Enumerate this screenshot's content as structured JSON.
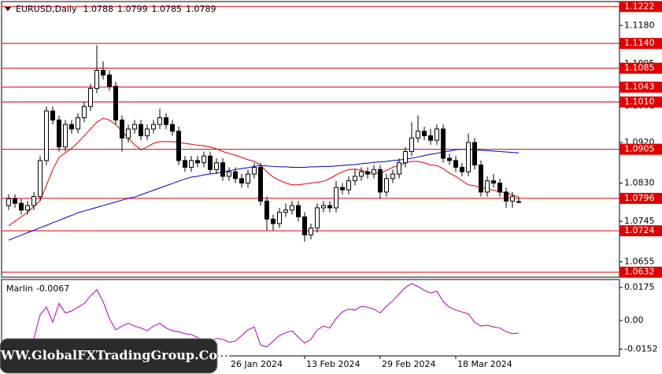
{
  "chart_data": {
    "type": "candlestick",
    "symbol": "EURUSD,Daily",
    "categories": [
      null,
      null,
      null,
      null,
      null,
      null,
      null,
      null,
      null,
      null,
      null,
      null,
      null,
      null,
      null,
      null,
      null,
      null,
      null,
      null,
      null,
      null,
      null,
      null,
      null,
      null,
      null,
      null,
      null,
      null,
      null,
      null,
      null,
      null,
      null,
      "26 Jan 2024",
      null,
      null,
      null,
      null,
      null,
      null,
      null,
      null,
      null,
      null,
      null,
      "13 Feb 2024",
      null,
      null,
      null,
      null,
      null,
      null,
      null,
      null,
      null,
      null,
      null,
      "29 Feb 2024",
      null,
      null,
      null,
      null,
      null,
      null,
      null,
      null,
      null,
      null,
      null,
      "18 Mar 2024",
      null,
      null,
      null,
      null,
      null,
      null,
      null,
      null,
      null,
      null
    ],
    "ohlc": [
      [
        1.078,
        1.0805,
        1.077,
        1.0795
      ],
      [
        1.0795,
        1.0805,
        1.0775,
        1.0785
      ],
      [
        1.0785,
        1.0795,
        1.076,
        1.077
      ],
      [
        1.077,
        1.079,
        1.076,
        1.078
      ],
      [
        1.078,
        1.081,
        1.077,
        1.08
      ],
      [
        1.08,
        1.089,
        1.079,
        1.088
      ],
      [
        1.088,
        1.1,
        1.087,
        1.099
      ],
      [
        1.099,
        1.1,
        1.096,
        1.097
      ],
      [
        1.097,
        1.098,
        1.09,
        1.091
      ],
      [
        1.091,
        1.097,
        1.09,
        1.096
      ],
      [
        1.096,
        1.097,
        1.094,
        1.095
      ],
      [
        1.095,
        1.0985,
        1.094,
        1.0975
      ],
      [
        1.0975,
        1.101,
        1.0965,
        1.1
      ],
      [
        1.1,
        1.105,
        1.099,
        1.104
      ],
      [
        1.104,
        1.1136,
        1.103,
        1.108
      ],
      [
        1.108,
        1.11,
        1.106,
        1.107
      ],
      [
        1.107,
        1.108,
        1.1035,
        1.1045
      ],
      [
        1.1045,
        1.1055,
        1.096,
        1.097
      ],
      [
        1.097,
        1.098,
        1.09,
        1.093
      ],
      [
        1.093,
        1.096,
        1.092,
        1.095
      ],
      [
        1.095,
        1.097,
        1.094,
        1.096
      ],
      [
        1.096,
        1.097,
        1.0925,
        1.0935
      ],
      [
        1.0935,
        1.096,
        1.0925,
        1.095
      ],
      [
        1.095,
        1.097,
        1.094,
        1.096
      ],
      [
        1.096,
        1.0995,
        1.095,
        1.0975
      ],
      [
        1.0975,
        1.0985,
        1.095,
        1.096
      ],
      [
        1.096,
        1.097,
        1.0935,
        1.0945
      ],
      [
        1.0945,
        1.0955,
        1.087,
        1.088
      ],
      [
        1.088,
        1.089,
        1.0855,
        1.0865
      ],
      [
        1.0865,
        1.089,
        1.0855,
        1.088
      ],
      [
        1.088,
        1.089,
        1.0865,
        1.0875
      ],
      [
        1.0875,
        1.09,
        1.0865,
        1.089
      ],
      [
        1.089,
        1.09,
        1.085,
        1.086
      ],
      [
        1.086,
        1.0885,
        1.085,
        1.0875
      ],
      [
        1.0875,
        1.0885,
        1.0835,
        1.0845
      ],
      [
        1.0845,
        1.0865,
        1.0835,
        1.0855
      ],
      [
        1.0855,
        1.0865,
        1.083,
        1.084
      ],
      [
        1.084,
        1.085,
        1.082,
        1.083
      ],
      [
        1.083,
        1.086,
        1.082,
        1.085
      ],
      [
        1.085,
        1.0875,
        1.084,
        1.0865
      ],
      [
        1.0865,
        1.0875,
        1.078,
        1.079
      ],
      [
        1.079,
        1.08,
        1.0725,
        1.075
      ],
      [
        1.075,
        1.076,
        1.0725,
        1.074
      ],
      [
        1.074,
        1.0775,
        1.073,
        1.0765
      ],
      [
        1.0765,
        1.0785,
        1.0755,
        1.077
      ],
      [
        1.077,
        1.079,
        1.076,
        1.078
      ],
      [
        1.078,
        1.079,
        1.0745,
        1.0755
      ],
      [
        1.0755,
        1.0765,
        1.07,
        1.0715
      ],
      [
        1.0715,
        1.074,
        1.0705,
        1.073
      ],
      [
        1.073,
        1.0785,
        1.072,
        1.0775
      ],
      [
        1.0775,
        1.079,
        1.0765,
        1.078
      ],
      [
        1.078,
        1.079,
        1.0765,
        1.0775
      ],
      [
        1.0775,
        1.0835,
        1.0765,
        1.082
      ],
      [
        1.082,
        1.083,
        1.0805,
        1.0815
      ],
      [
        1.0815,
        1.0845,
        1.0805,
        1.0835
      ],
      [
        1.0835,
        1.086,
        1.0825,
        1.0845
      ],
      [
        1.0845,
        1.0865,
        1.0835,
        1.0855
      ],
      [
        1.0855,
        1.0865,
        1.084,
        1.085
      ],
      [
        1.085,
        1.087,
        1.084,
        1.086
      ],
      [
        1.086,
        1.087,
        1.0795,
        1.081
      ],
      [
        1.081,
        1.085,
        1.08,
        1.084
      ],
      [
        1.084,
        1.086,
        1.083,
        1.085
      ],
      [
        1.085,
        1.0885,
        1.084,
        1.0875
      ],
      [
        1.0875,
        1.091,
        1.0865,
        1.09
      ],
      [
        1.09,
        1.0965,
        1.089,
        1.093
      ],
      [
        1.093,
        1.098,
        1.092,
        1.0945
      ],
      [
        1.0945,
        1.0955,
        1.0925,
        1.0935
      ],
      [
        1.0935,
        1.095,
        1.0915,
        1.0925
      ],
      [
        1.0925,
        1.096,
        1.0915,
        1.095
      ],
      [
        1.095,
        1.096,
        1.0875,
        1.0885
      ],
      [
        1.0885,
        1.0895,
        1.087,
        1.088
      ],
      [
        1.088,
        1.089,
        1.0855,
        1.0865
      ],
      [
        1.0865,
        1.0875,
        1.0845,
        1.0855
      ],
      [
        1.0855,
        1.094,
        1.0845,
        1.092
      ],
      [
        1.092,
        1.093,
        1.086,
        1.087
      ],
      [
        1.087,
        1.088,
        1.08,
        1.081
      ],
      [
        1.081,
        1.0845,
        1.08,
        1.0835
      ],
      [
        1.0835,
        1.085,
        1.082,
        1.083
      ],
      [
        1.083,
        1.084,
        1.08,
        1.081
      ],
      [
        1.081,
        1.082,
        1.0775,
        1.079
      ],
      [
        1.079,
        1.081,
        1.0775,
        1.08
      ],
      [
        1.0788,
        1.0799,
        1.0785,
        1.0789
      ]
    ],
    "up_color": "#ffffff",
    "down_color": "#000000",
    "lines": [
      {
        "color": "#e00000",
        "values": [
          1.0735,
          1.0745,
          1.0755,
          1.0765,
          1.0778,
          1.0791,
          1.0825,
          1.086,
          1.0887,
          1.0897,
          1.0907,
          1.092,
          1.0935,
          1.095,
          1.0965,
          1.0974,
          1.097,
          1.096,
          1.0945,
          1.093,
          1.0915,
          1.0904,
          1.091,
          1.0918,
          1.0922,
          1.0922,
          1.0922,
          1.092,
          1.0918,
          1.0916,
          1.0914,
          1.0913,
          1.091,
          1.0906,
          1.09,
          1.0896,
          1.0892,
          1.0887,
          1.0882,
          1.0878,
          1.087,
          1.0855,
          1.0843,
          1.0836,
          1.083,
          1.0826,
          1.0826,
          1.0828,
          1.083,
          1.0832,
          1.0834,
          1.084,
          1.0848,
          1.0855,
          1.086,
          1.0861,
          1.0858,
          1.0855,
          1.0852,
          1.0852,
          1.0858,
          1.0865,
          1.0869,
          1.0875,
          1.0878,
          1.0878,
          1.0875,
          1.087,
          1.0869,
          1.0862,
          1.0852,
          1.0845,
          1.0835,
          1.0826,
          1.0824,
          1.082,
          1.0817,
          1.0814,
          1.0811,
          1.0808,
          1.0804,
          1.0799
        ]
      },
      {
        "color": "#0000cc",
        "values": [
          1.0703,
          1.0709,
          1.0714,
          1.072,
          1.0725,
          1.0731,
          1.0736,
          1.0742,
          1.0747,
          1.0753,
          1.0758,
          1.0764,
          1.0768,
          1.0772,
          1.0776,
          1.078,
          1.0784,
          1.0788,
          1.0792,
          1.0796,
          1.0799,
          1.0804,
          1.0809,
          1.0814,
          1.0819,
          1.0824,
          1.0829,
          1.0834,
          1.0839,
          1.0843,
          1.0845,
          1.0848,
          1.085,
          1.0852,
          1.0855,
          1.0857,
          1.086,
          1.0862,
          1.0864,
          1.0867,
          1.0869,
          1.0868,
          1.0867,
          1.0866,
          1.0866,
          1.0865,
          1.0865,
          1.0865,
          1.0866,
          1.0866,
          1.0867,
          1.0867,
          1.0868,
          1.0869,
          1.087,
          1.0871,
          1.0873,
          1.0874,
          1.0876,
          1.0877,
          1.0878,
          1.088,
          1.0881,
          1.0883,
          1.0885,
          1.0888,
          1.0891,
          1.0894,
          1.0896,
          1.0899,
          1.0901,
          1.0904,
          1.0905,
          1.0905,
          1.0904,
          1.0903,
          1.0902,
          1.0901,
          1.09,
          1.0899,
          1.0898,
          1.0897
        ]
      }
    ],
    "levels": {
      "color": "#e00000",
      "values": [
        1.1222,
        {
          "value": 1.114,
          "label": "1.1140"
        },
        1.1085,
        1.1043,
        {
          "value": 1.101,
          "label": "1.1010"
        },
        1.0905,
        1.0796,
        1.0724,
        1.0632
      ]
    },
    "ylim": [
      1.0621,
      1.1233
    ],
    "yticks": [
      {
        "value": 1.118,
        "label": "1.1180"
      },
      1.1095,
      1.1001,
      {
        "value": 1.092,
        "label": "1.0920"
      },
      {
        "value": 1.083,
        "label": "1.0830"
      },
      1.0745,
      1.0655
    ],
    "oscillator": {
      "name": "Marlin",
      "color": "#b000b0",
      "ylim": [
        -0.0188,
        0.0217
      ],
      "yticks": [
        0.0175,
        {
          "value": 0,
          "label": "0.00"
        },
        -0.0152
      ],
      "values": [
        null,
        null,
        null,
        null,
        -0.0096,
        0.003,
        0.0071,
        -0.001,
        0.009,
        0.004,
        0.005,
        0.007,
        0.009,
        0.013,
        0.0163,
        0.01,
        0.001,
        -0.005,
        -0.003,
        -0.0015,
        -0.003,
        -0.004,
        -0.0055,
        -0.003,
        -0.0015,
        -0.004,
        -0.0055,
        -0.006,
        -0.007,
        -0.0075,
        -0.009,
        -0.0115,
        -0.011,
        -0.0095,
        -0.01,
        -0.0115,
        -0.011,
        -0.008,
        -0.005,
        -0.0035,
        -0.013,
        -0.014,
        -0.011,
        -0.008,
        -0.0065,
        -0.0055,
        -0.009,
        -0.012,
        -0.01,
        -0.005,
        -0.003,
        -0.004,
        0.001,
        0.0045,
        0.006,
        0.0055,
        0.0075,
        0.007,
        0.006,
        0.004,
        0.0075,
        0.0105,
        0.014,
        0.0175,
        0.0196,
        0.018,
        0.016,
        0.0145,
        0.0155,
        0.01,
        0.007,
        0.0055,
        0.0045,
        0.0035,
        -0.001,
        -0.003,
        -0.0025,
        -0.0035,
        -0.004,
        -0.006,
        -0.007,
        -0.0067
      ]
    },
    "watermark": "WWW.GlobalFXTradingGroup.Com"
  }
}
